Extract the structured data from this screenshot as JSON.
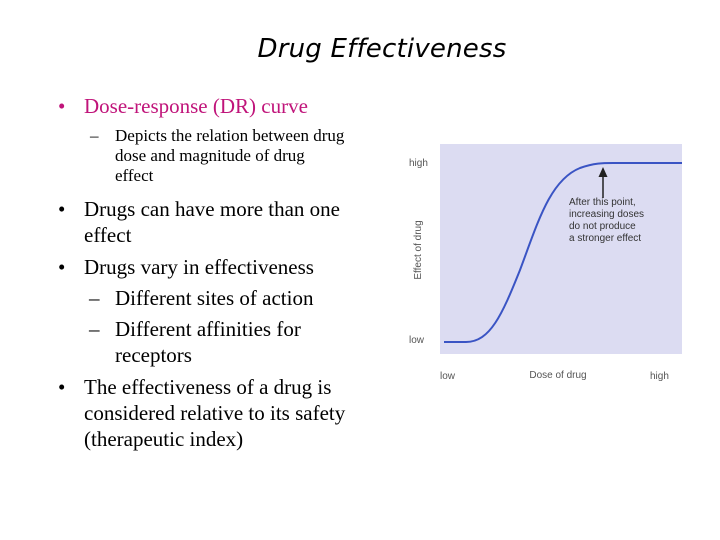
{
  "slide": {
    "title": "Drug Effectiveness",
    "bullet1": "Dose-response (DR) curve",
    "bullet1_sub_lines": [
      "Depicts the relation between drug",
      "dose and magnitude of drug",
      "effect"
    ],
    "bullet2_lines": [
      "Drugs can have more than one",
      "effect"
    ],
    "bullet3": "Drugs vary in effectiveness",
    "bullet3_sub1": "Different sites of action",
    "bullet3_sub2_lines": [
      "Different affinities for",
      "receptors"
    ],
    "bullet4_lines": [
      "The effectiveness of a drug is",
      "considered relative to its safety",
      "(therapeutic index)"
    ],
    "bullet_char": "•",
    "dash_char": "–",
    "accent_color": "#c0147a"
  },
  "figure": {
    "y_axis_label": "Effect of drug",
    "y_high": "high",
    "y_low": "low",
    "x_axis_label": "Dose of drug",
    "x_low": "low",
    "x_high": "high",
    "annotation_lines": [
      "After this point,",
      "increasing doses",
      "do not produce",
      "a stronger effect"
    ],
    "panel_color": "#dcdcf2",
    "curve_color": "#3a54c4",
    "arrow_icon": "arrow-up-icon"
  }
}
